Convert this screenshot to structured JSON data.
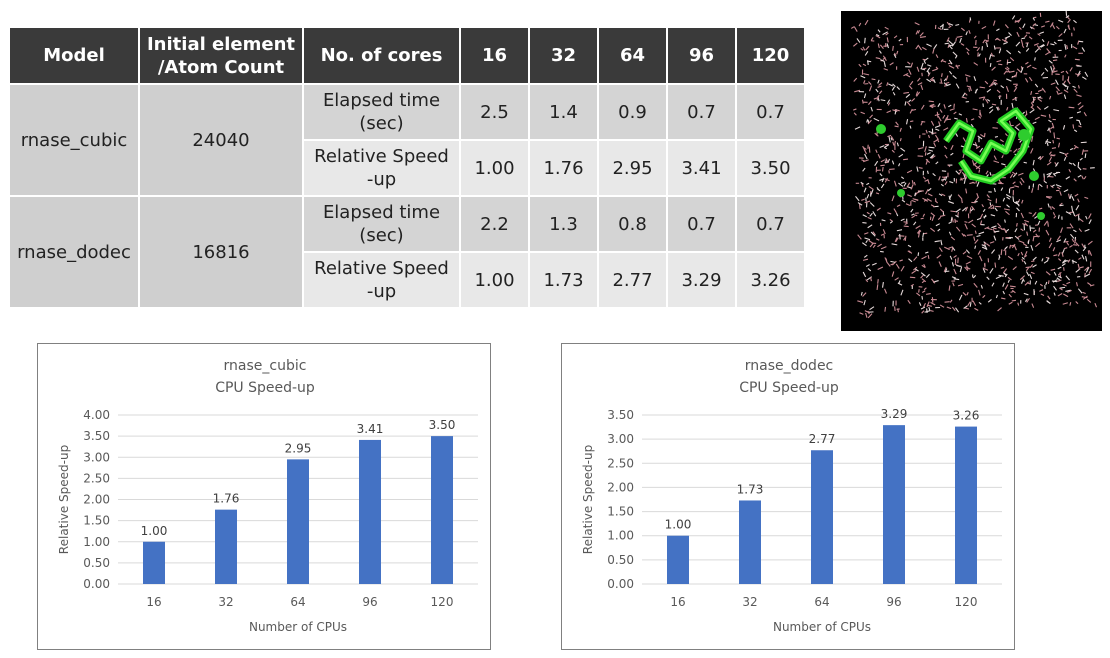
{
  "table": {
    "headers": [
      "Model",
      "Initial element /Atom Count",
      "No. of cores",
      "16",
      "32",
      "64",
      "96",
      "120"
    ],
    "header_model": "Model",
    "header_count_line1": "Initial element",
    "header_count_line2": "/Atom Count",
    "header_cores": "No. of cores",
    "core_counts": [
      "16",
      "32",
      "64",
      "96",
      "120"
    ],
    "rows": [
      {
        "model": "rnase_cubic",
        "count": "24040",
        "metrics": [
          {
            "label_line1": "Elapsed time",
            "label_line2": "(sec)",
            "values": [
              "2.5",
              "1.4",
              "0.9",
              "0.7",
              "0.7"
            ]
          },
          {
            "label_line1": "Relative Speed",
            "label_line2": "-up",
            "values": [
              "1.00",
              "1.76",
              "2.95",
              "3.41",
              "3.50"
            ]
          }
        ]
      },
      {
        "model": "rnase_dodec",
        "count": "16816",
        "metrics": [
          {
            "label_line1": "Elapsed time",
            "label_line2": "(sec)",
            "values": [
              "2.2",
              "1.3",
              "0.8",
              "0.7",
              "0.7"
            ]
          },
          {
            "label_line1": "Relative Speed",
            "label_line2": "-up",
            "values": [
              "1.00",
              "1.73",
              "2.77",
              "3.29",
              "3.26"
            ]
          }
        ]
      }
    ]
  },
  "colors": {
    "bar": "#4472c4",
    "header_bg": "#3a3a3a",
    "cell_dark": "#d4d4d4",
    "cell_light": "#e8e8e8"
  },
  "chart_data": [
    {
      "type": "bar",
      "title_line1": "rnase_cubic",
      "title_line2": "CPU Speed-up",
      "xlabel": "Number of CPUs",
      "ylabel": "Relative Speed-up",
      "categories": [
        "16",
        "32",
        "64",
        "96",
        "120"
      ],
      "values": [
        1.0,
        1.76,
        2.95,
        3.41,
        3.5
      ],
      "data_labels": [
        "1.00",
        "1.76",
        "2.95",
        "3.41",
        "3.50"
      ],
      "yticks": [
        "0.00",
        "0.50",
        "1.00",
        "1.50",
        "2.00",
        "2.50",
        "3.00",
        "3.50",
        "4.00"
      ],
      "ylim": [
        0,
        4.0
      ],
      "grid": true
    },
    {
      "type": "bar",
      "title_line1": "rnase_dodec",
      "title_line2": "CPU Speed-up",
      "xlabel": "Number of CPUs",
      "ylabel": "Relative Speed-up",
      "categories": [
        "16",
        "32",
        "64",
        "96",
        "120"
      ],
      "values": [
        1.0,
        1.73,
        2.77,
        3.29,
        3.26
      ],
      "data_labels": [
        "1.00",
        "1.73",
        "2.77",
        "3.29",
        "3.26"
      ],
      "yticks": [
        "0.00",
        "0.50",
        "1.00",
        "1.50",
        "2.00",
        "2.50",
        "3.00",
        "3.50"
      ],
      "ylim": [
        0,
        3.5
      ],
      "grid": true
    }
  ]
}
